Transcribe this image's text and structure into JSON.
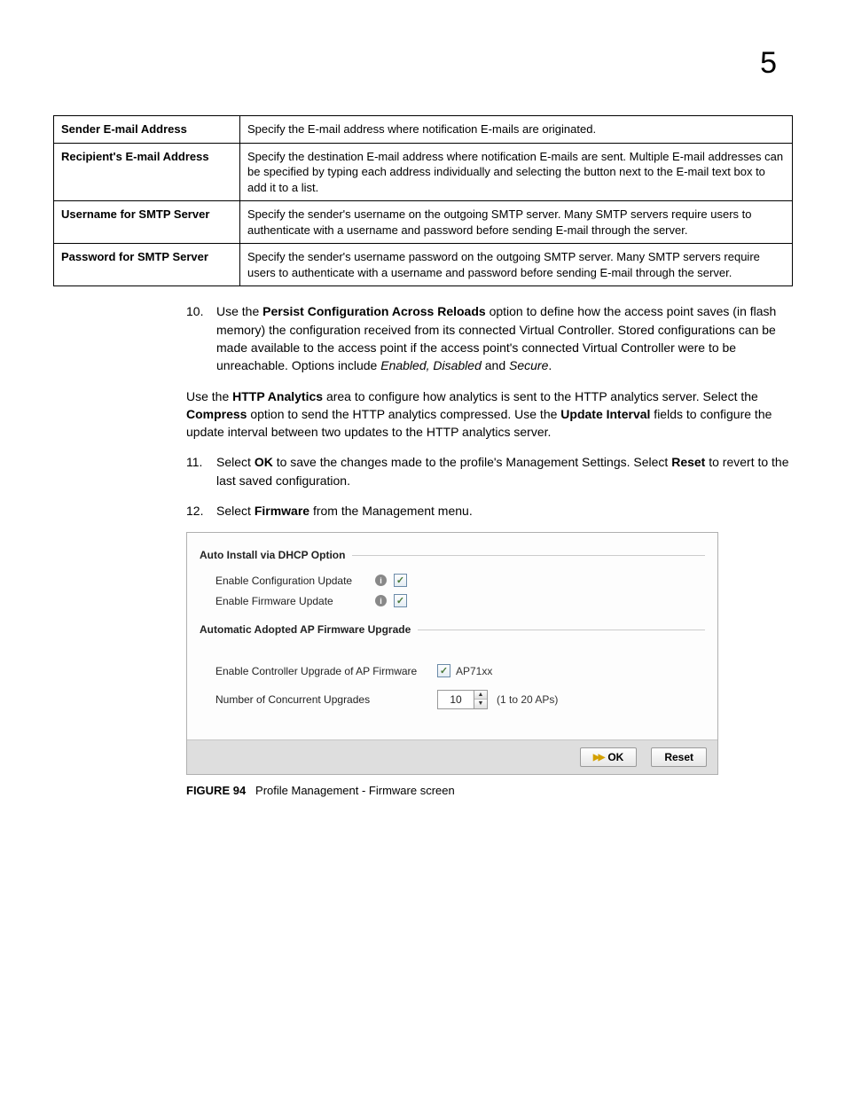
{
  "chapter": "5",
  "table": {
    "rows": [
      {
        "label": "Sender E-mail Address",
        "desc": "Specify the E-mail address where notification E-mails are originated."
      },
      {
        "label": "Recipient's E-mail Address",
        "desc": "Specify the destination E-mail address where notification E-mails are sent. Multiple E-mail addresses can be specified by typing each address individually and selecting the button next to the E-mail text box to add it to a list."
      },
      {
        "label": "Username for SMTP Server",
        "desc": "Specify the sender's username on the outgoing SMTP server. Many SMTP servers require users to authenticate with a username and password before sending E-mail through the server."
      },
      {
        "label": "Password for SMTP Server",
        "desc": "Specify the sender's username password on the outgoing SMTP server. Many SMTP servers require users to authenticate with a username and password before sending E-mail through the server."
      }
    ]
  },
  "step10": {
    "num": "10.",
    "pre": "Use the ",
    "b1": "Persist Configuration Across Reloads",
    "mid": " option to define how the access point saves (in flash memory) the configuration received from its connected Virtual Controller. Stored configurations can be made available to the access point if the access point's connected Virtual Controller were to be unreachable. Options include ",
    "i1": "Enabled, Disabled",
    "mid2": " and ",
    "i2": "Secure",
    "post": "."
  },
  "http_para": {
    "p1": "Use the ",
    "b1": "HTTP Analytics",
    "p2": " area to configure how analytics is sent to the HTTP analytics server. Select the ",
    "b2": "Compress",
    "p3": " option to send the HTTP analytics compressed. Use the ",
    "b3": "Update Interval",
    "p4": " fields to configure the update interval between two updates to the HTTP analytics server."
  },
  "step11": {
    "num": "11.",
    "p1": "Select ",
    "b1": "OK",
    "p2": " to save the changes made to the profile's Management Settings. Select ",
    "b2": "Reset",
    "p3": " to revert to the last saved configuration."
  },
  "step12": {
    "num": "12.",
    "p1": "Select ",
    "b1": "Firmware",
    "p2": " from the Management menu."
  },
  "figure": {
    "section1_title": "Auto Install via DHCP Option",
    "row1_label": "Enable Configuration Update",
    "row2_label": "Enable Firmware Update",
    "section2_title": "Automatic Adopted AP Firmware Upgrade",
    "row3_label": "Enable Controller Upgrade of AP Firmware",
    "ap_model": "AP71xx",
    "row4_label": "Number of Concurrent Upgrades",
    "number_value": "10",
    "range": "(1 to 20 APs)",
    "ok_label": "OK",
    "reset_label": "Reset",
    "caption_prefix": "FIGURE 94",
    "caption_text": "Profile Management - Firmware screen"
  }
}
